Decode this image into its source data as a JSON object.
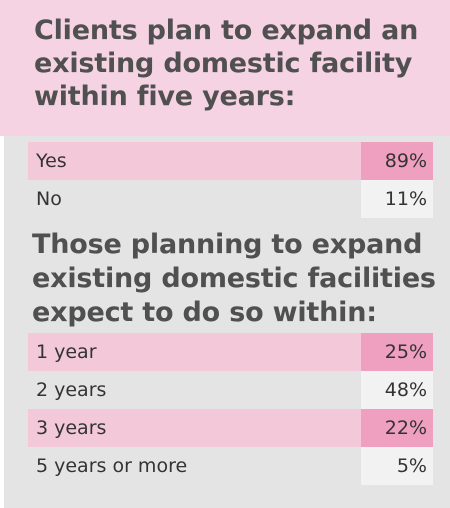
{
  "section1": {
    "title": "Clients plan to expand an existing domestic facility within five years:",
    "rows": [
      {
        "label": "Yes",
        "value": "89%"
      },
      {
        "label": "No",
        "value": "11%"
      }
    ]
  },
  "section2": {
    "title": "Those planning to expand existing domestic facilities expect to do so within:",
    "rows": [
      {
        "label": "1 year",
        "value": "25%"
      },
      {
        "label": "2 years",
        "value": "48%"
      },
      {
        "label": "3 years",
        "value": "22%"
      },
      {
        "label": "5 years or more",
        "value": "5%"
      }
    ]
  },
  "colors": {
    "header_bg": "#f5d3e2",
    "row_pink": "#f3c9da",
    "value_pink": "#ef9fc0",
    "panel_gray": "#e4e4e4"
  }
}
